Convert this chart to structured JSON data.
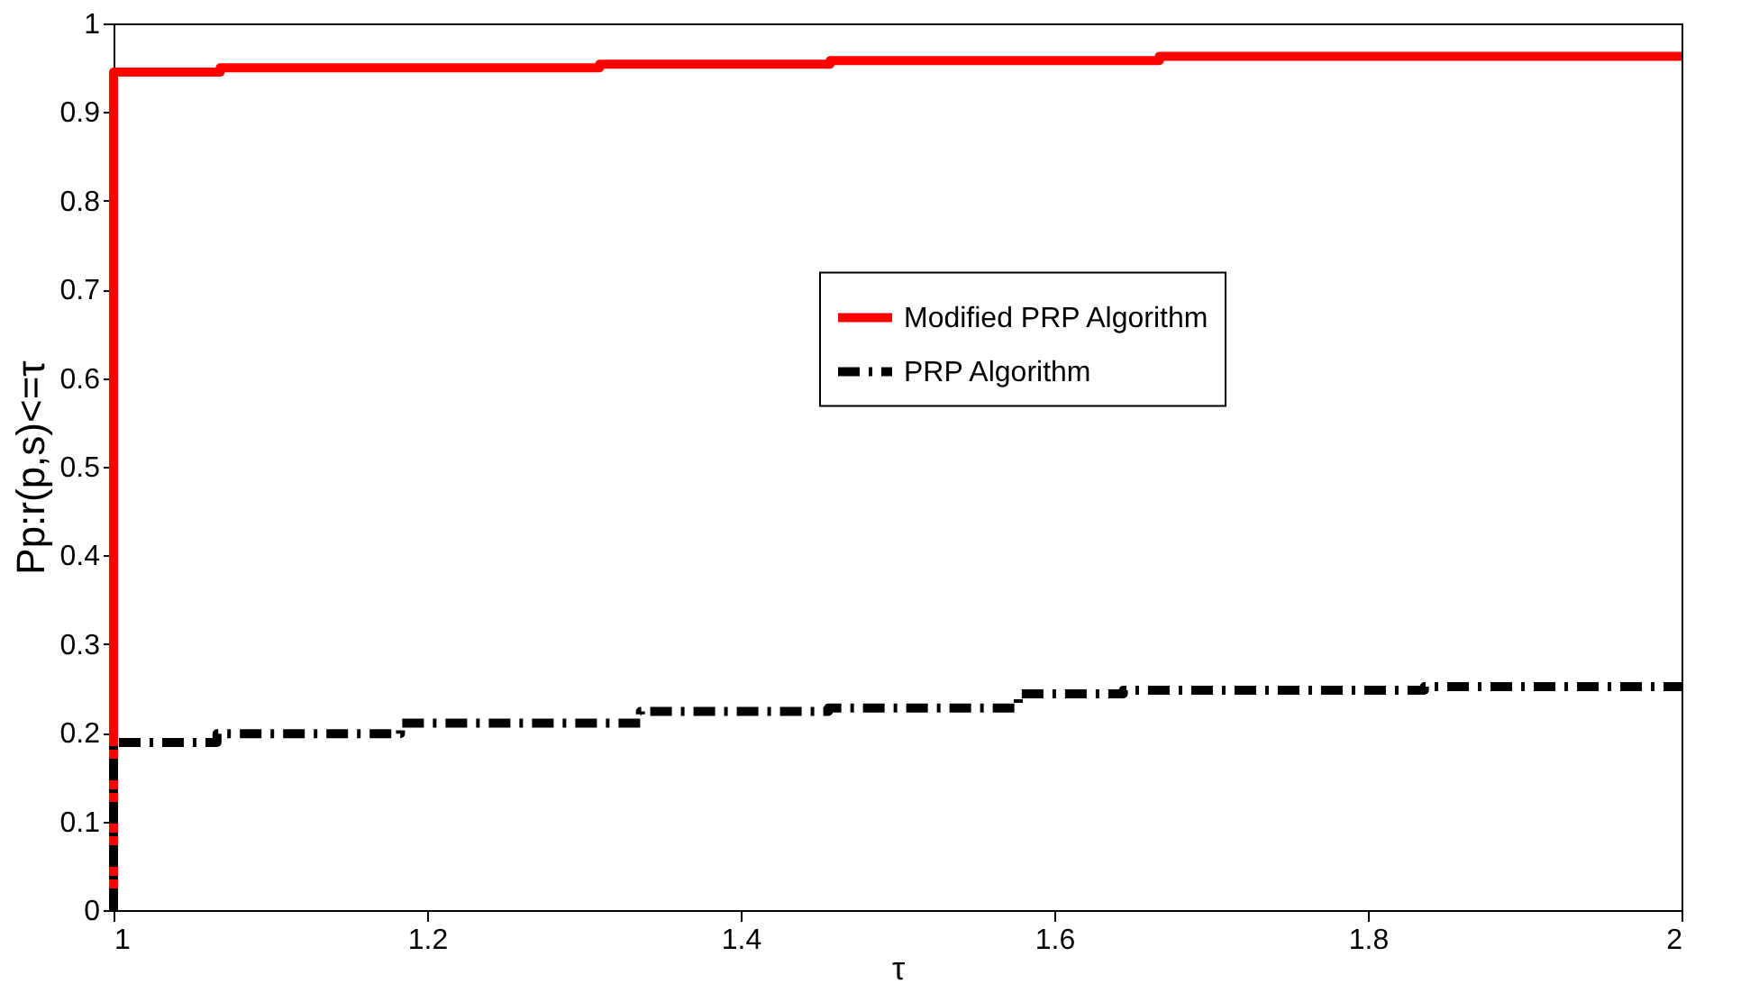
{
  "chart_data": {
    "type": "step",
    "xlabel": "τ",
    "ylabel": "Pp:r(p,s)<=τ",
    "xlim": [
      1,
      2
    ],
    "xticks": [
      1,
      1.2,
      1.4,
      1.6,
      1.8,
      2
    ],
    "ylim": [
      0,
      1
    ],
    "yticks": [
      0,
      0.1,
      0.2,
      0.3,
      0.4,
      0.5,
      0.6,
      0.7,
      0.8,
      0.9,
      1
    ],
    "grid": false,
    "legend": "top right",
    "marker": "none",
    "series": [
      {
        "name": "Modified PRP Algorithm",
        "color": "#ff0000",
        "line_style": "solid",
        "x": [
          1,
          1,
          1.068,
          1.31,
          1.457,
          1.667,
          2
        ],
        "values": [
          0,
          0.945,
          0.95,
          0.954,
          0.958,
          0.963,
          0.963
        ]
      },
      {
        "name": "PRP Algorithm",
        "color": "#000000",
        "line_style": "dashdot",
        "x": [
          1,
          1,
          1.066,
          1.183,
          1.336,
          1.456,
          1.577,
          1.644,
          1.836,
          2
        ],
        "values": [
          0,
          0.189,
          0.199,
          0.211,
          0.224,
          0.228,
          0.244,
          0.248,
          0.252,
          0.252
        ]
      }
    ]
  }
}
